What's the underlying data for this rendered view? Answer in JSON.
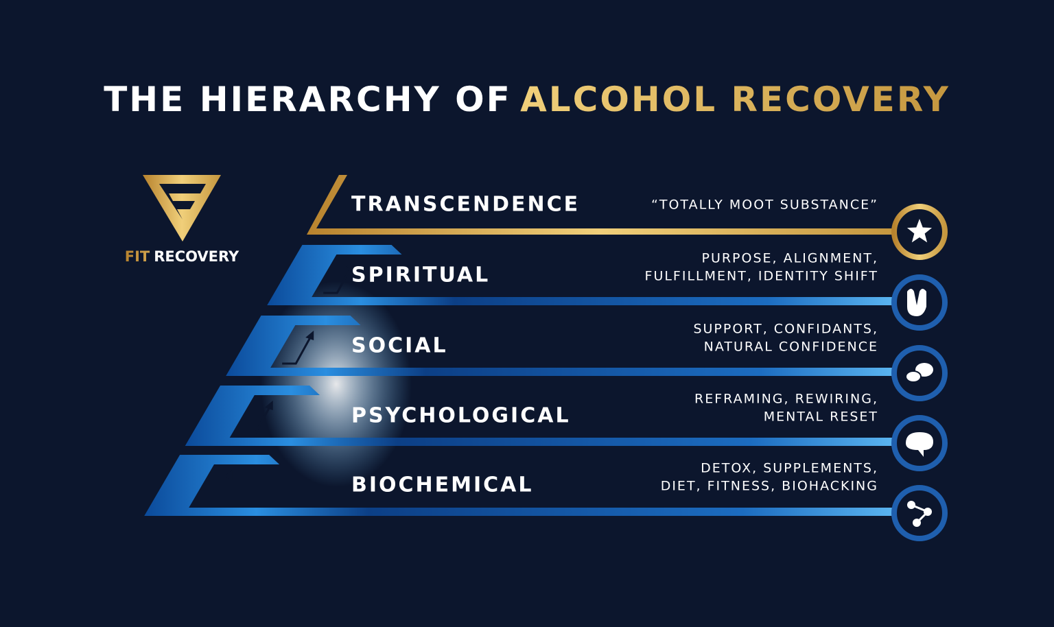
{
  "title": {
    "lead": "THE HIERARCHY OF",
    "highlight": "ALCOHOL RECOVERY"
  },
  "logo": {
    "brand": "FIT",
    "name": "RECOVERY"
  },
  "levels": [
    {
      "label": "TRANSCENDENCE",
      "description": [
        "“TOTALLY MOOT SUBSTANCE”"
      ]
    },
    {
      "label": "SPIRITUAL",
      "description": [
        "PURPOSE, ALIGNMENT,",
        "FULFILLMENT, IDENTITY SHIFT"
      ]
    },
    {
      "label": "SOCIAL",
      "description": [
        "SUPPORT, CONFIDANTS,",
        "NATURAL CONFIDENCE"
      ]
    },
    {
      "label": "PSYCHOLOGICAL",
      "description": [
        "REFRAMING, REWIRING,",
        "MENTAL RESET"
      ]
    },
    {
      "label": "BIOCHEMICAL",
      "description": [
        "DETOX, SUPPLEMENTS,",
        "DIET, FITNESS, BIOHACKING"
      ]
    }
  ]
}
